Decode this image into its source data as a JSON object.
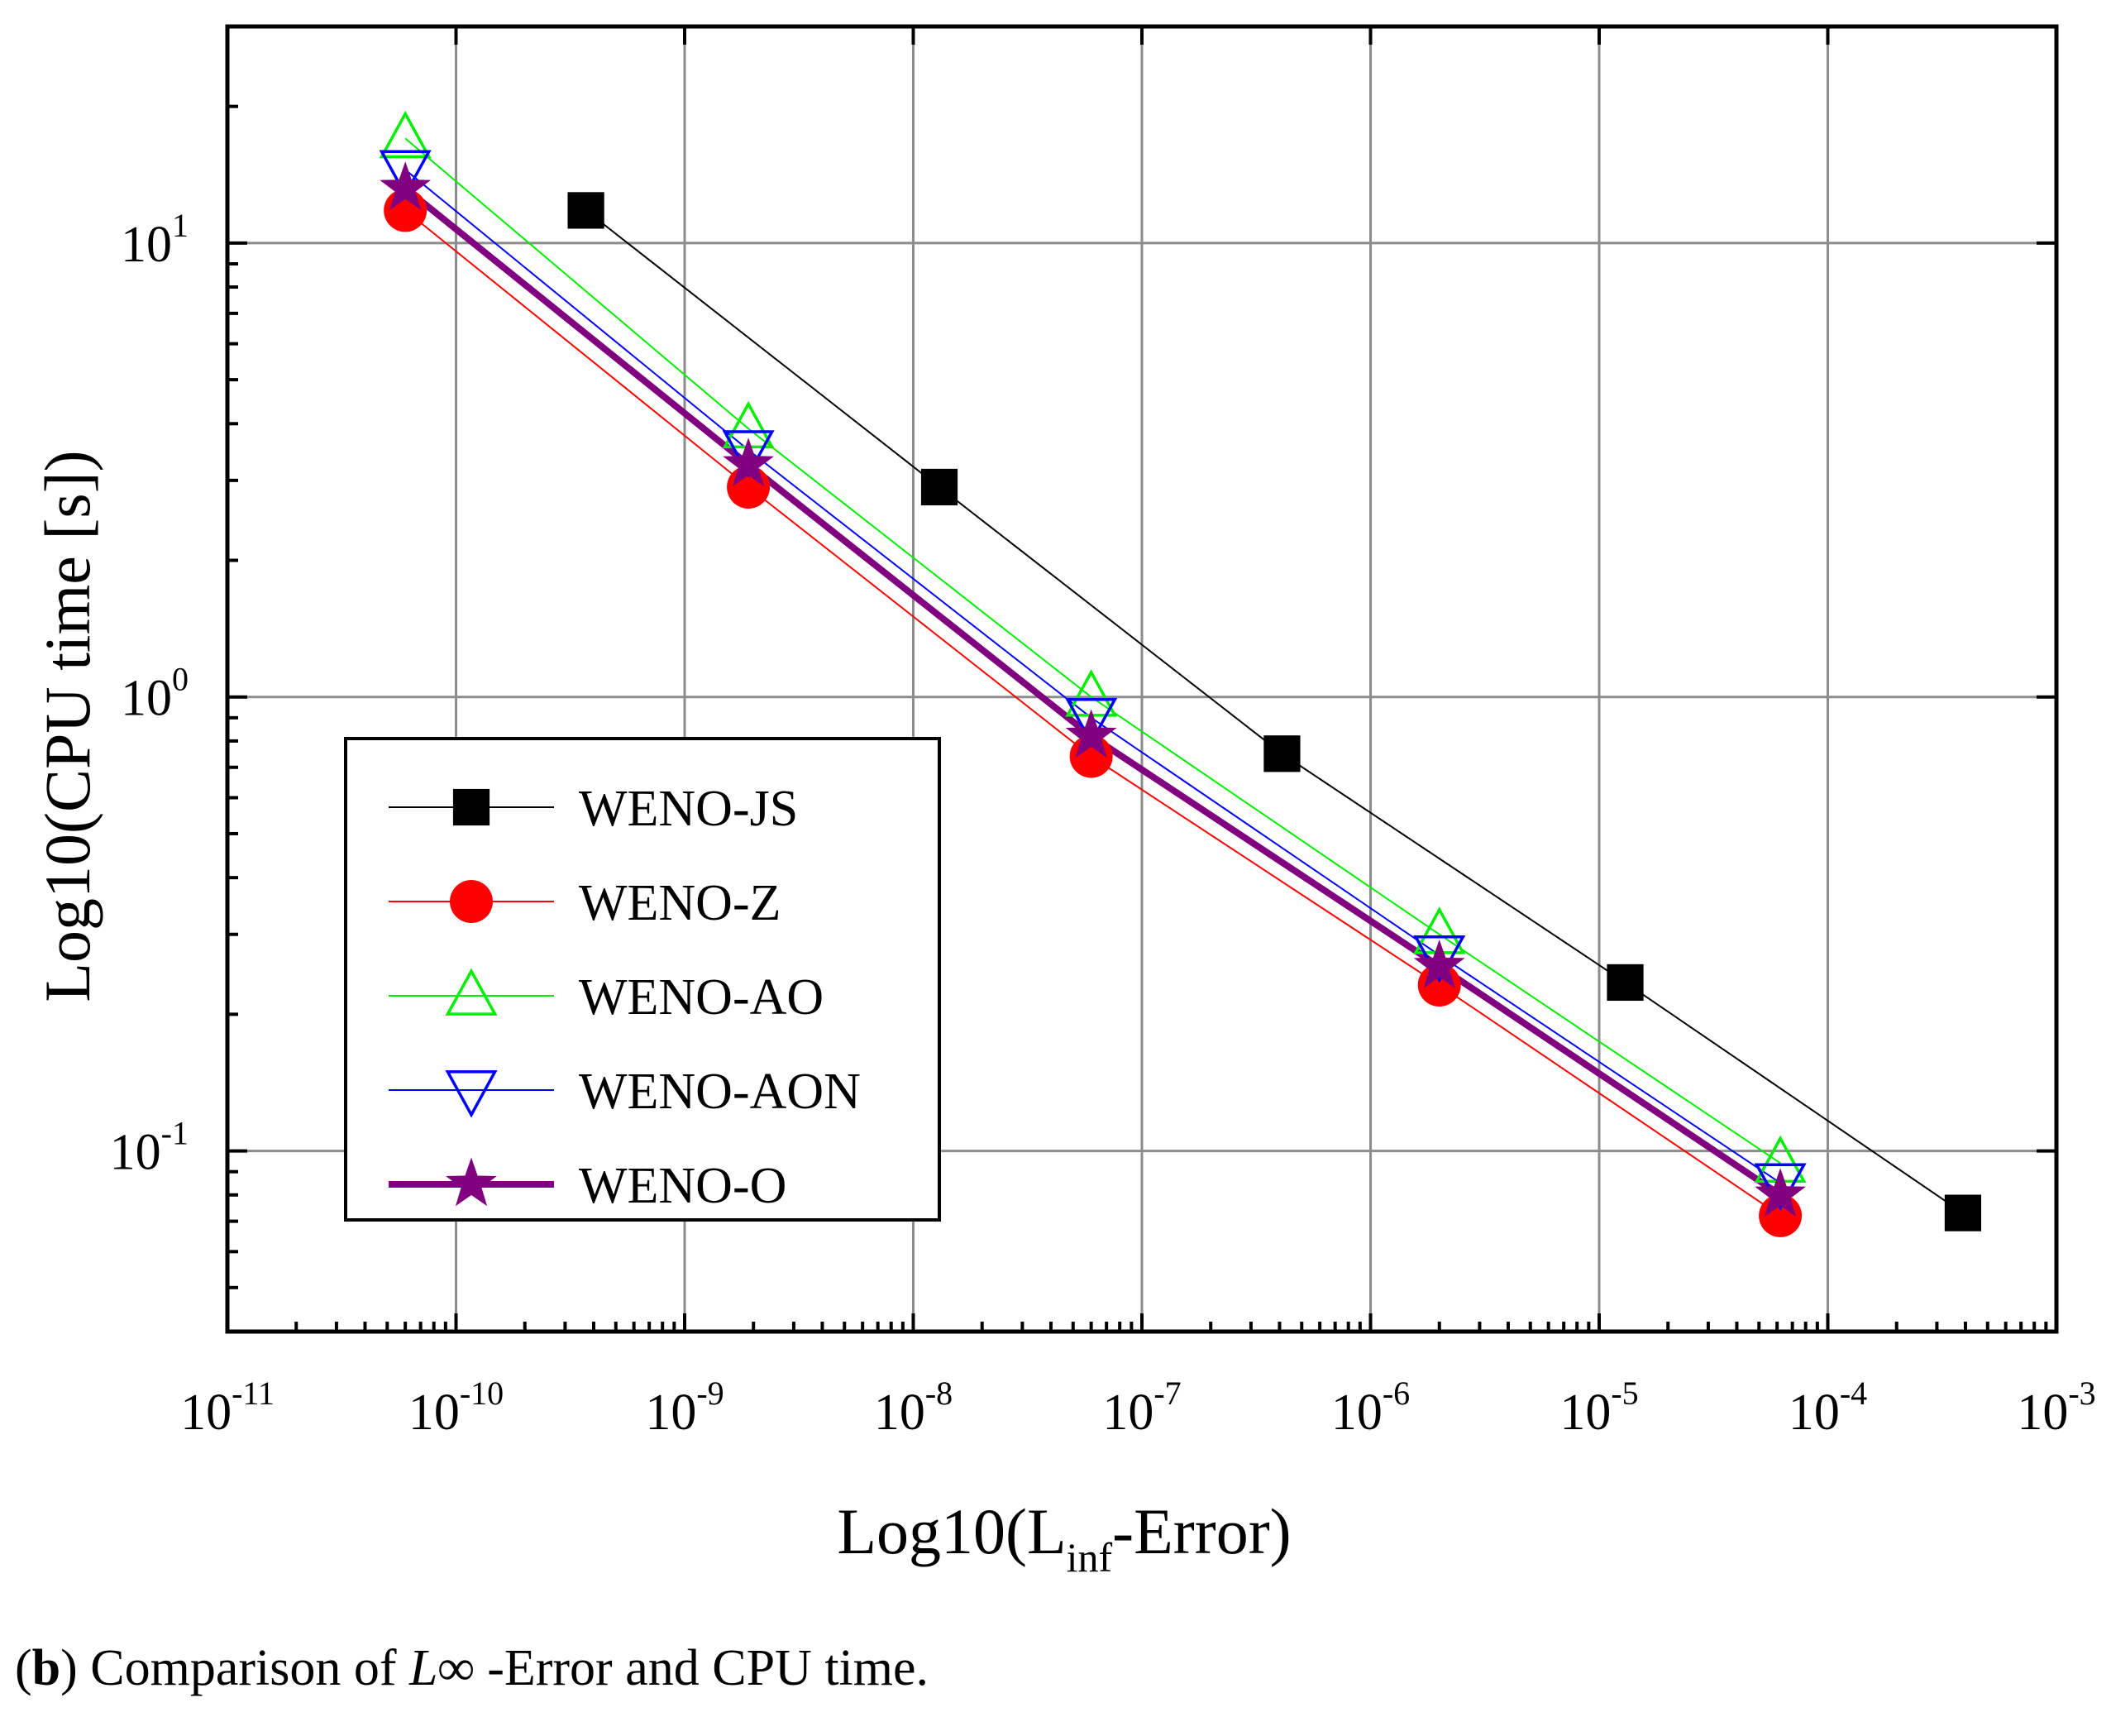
{
  "chart_data": {
    "type": "line",
    "x_scale": "log",
    "y_scale": "log",
    "xlabel": {
      "base": "Log10(L",
      "subscript": "inf",
      "suffix": "-Error)"
    },
    "ylabel": "Log10(CPU time [s])",
    "xlim": [
      1e-11,
      0.001
    ],
    "ylim": [
      0.04,
      30
    ],
    "grid": true,
    "legend_position": "lower-left",
    "x_ticks": [
      {
        "value": 1e-11,
        "base": "10",
        "exp": "-11"
      },
      {
        "value": 1e-10,
        "base": "10",
        "exp": "-10"
      },
      {
        "value": 1e-09,
        "base": "10",
        "exp": "-9"
      },
      {
        "value": 1e-08,
        "base": "10",
        "exp": "-8"
      },
      {
        "value": 1e-07,
        "base": "10",
        "exp": "-7"
      },
      {
        "value": 1e-06,
        "base": "10",
        "exp": "-6"
      },
      {
        "value": 1e-05,
        "base": "10",
        "exp": "-5"
      },
      {
        "value": 0.0001,
        "base": "10",
        "exp": "-4"
      },
      {
        "value": 0.001,
        "base": "10",
        "exp": "-3"
      }
    ],
    "y_ticks": [
      {
        "value": 0.1,
        "base": "10",
        "exp": "-1"
      },
      {
        "value": 1,
        "base": "10",
        "exp": "0"
      },
      {
        "value": 10,
        "base": "10",
        "exp": "1"
      }
    ],
    "series": [
      {
        "name": "WENO-JS",
        "color": "#000000",
        "marker": "square-filled",
        "line_width": 2,
        "x": [
          3.7e-10,
          1.3e-08,
          4.1e-07,
          1.3e-05,
          0.00039
        ],
        "y": [
          11.8,
          2.9,
          0.75,
          0.235,
          0.073
        ]
      },
      {
        "name": "WENO-Z",
        "color": "#ff0000",
        "marker": "circle-filled",
        "line_width": 2,
        "x": [
          6e-11,
          1.9e-09,
          6e-08,
          2e-06,
          6.2e-05
        ],
        "y": [
          11.8,
          2.9,
          0.74,
          0.232,
          0.072
        ]
      },
      {
        "name": "WENO-AO",
        "color": "#00ee00",
        "marker": "triangle-up-open",
        "line_width": 2,
        "x": [
          6e-11,
          1.9e-09,
          6e-08,
          2e-06,
          6.2e-05
        ],
        "y": [
          17.0,
          3.9,
          1.0,
          0.3,
          0.094
        ]
      },
      {
        "name": "WENO-AON",
        "color": "#0000ff",
        "marker": "triangle-down-open",
        "line_width": 2,
        "x": [
          6e-11,
          1.9e-09,
          6e-08,
          2e-06,
          6.2e-05
        ],
        "y": [
          14.5,
          3.5,
          0.9,
          0.27,
          0.085
        ]
      },
      {
        "name": "WENO-O",
        "color": "#800080",
        "marker": "star-filled",
        "line_width": 8,
        "x": [
          6e-11,
          1.9e-09,
          6e-08,
          2e-06,
          6.2e-05
        ],
        "y": [
          13.2,
          3.25,
          0.82,
          0.255,
          0.08
        ]
      }
    ]
  },
  "caption": {
    "label": "b",
    "text_before": "Comparison of ",
    "symbol": "L∞",
    "text_after": " -Error and CPU time."
  }
}
